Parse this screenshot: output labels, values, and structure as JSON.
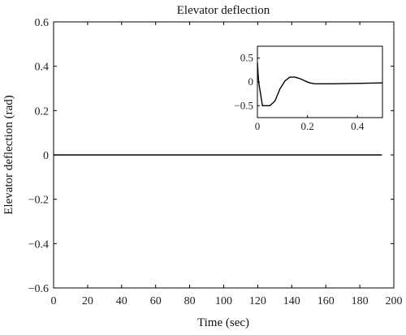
{
  "chart_data": {
    "type": "line",
    "title": "Elevator deflection",
    "xlabel": "Time (sec)",
    "ylabel": "Elevator deflection (rad)",
    "xlim": [
      0,
      200
    ],
    "ylim": [
      -0.6,
      0.6
    ],
    "x_ticks": [
      "0",
      "20",
      "40",
      "60",
      "80",
      "100",
      "120",
      "140",
      "160",
      "180",
      "200"
    ],
    "y_ticks": [
      "−0.6",
      "−0.4",
      "−0.2",
      "0",
      "0.2",
      "0.4",
      "0.6"
    ],
    "grid": false,
    "series": [
      {
        "x": [
          0,
          20,
          40,
          60,
          80,
          100,
          120,
          140,
          160,
          180,
          193
        ],
        "y": [
          0,
          0,
          0,
          0,
          0,
          0,
          0,
          0,
          0,
          0,
          0
        ]
      }
    ],
    "inset": {
      "type": "line",
      "xlim": [
        0,
        0.5
      ],
      "ylim": [
        -0.75,
        0.75
      ],
      "x_ticks": [
        "0",
        "0.2",
        "0.4"
      ],
      "y_ticks": [
        "0.5",
        "0",
        "−0.5"
      ],
      "series": [
        {
          "x": [
            0,
            0.005,
            0.02,
            0.05,
            0.07,
            0.09,
            0.11,
            0.13,
            0.15,
            0.17,
            0.19,
            0.21,
            0.23,
            0.3,
            0.4,
            0.5
          ],
          "y": [
            0.4,
            0.0,
            -0.5,
            -0.5,
            -0.4,
            -0.15,
            0.02,
            0.1,
            0.1,
            0.07,
            0.02,
            -0.02,
            -0.04,
            -0.04,
            -0.03,
            -0.02
          ]
        }
      ]
    }
  }
}
